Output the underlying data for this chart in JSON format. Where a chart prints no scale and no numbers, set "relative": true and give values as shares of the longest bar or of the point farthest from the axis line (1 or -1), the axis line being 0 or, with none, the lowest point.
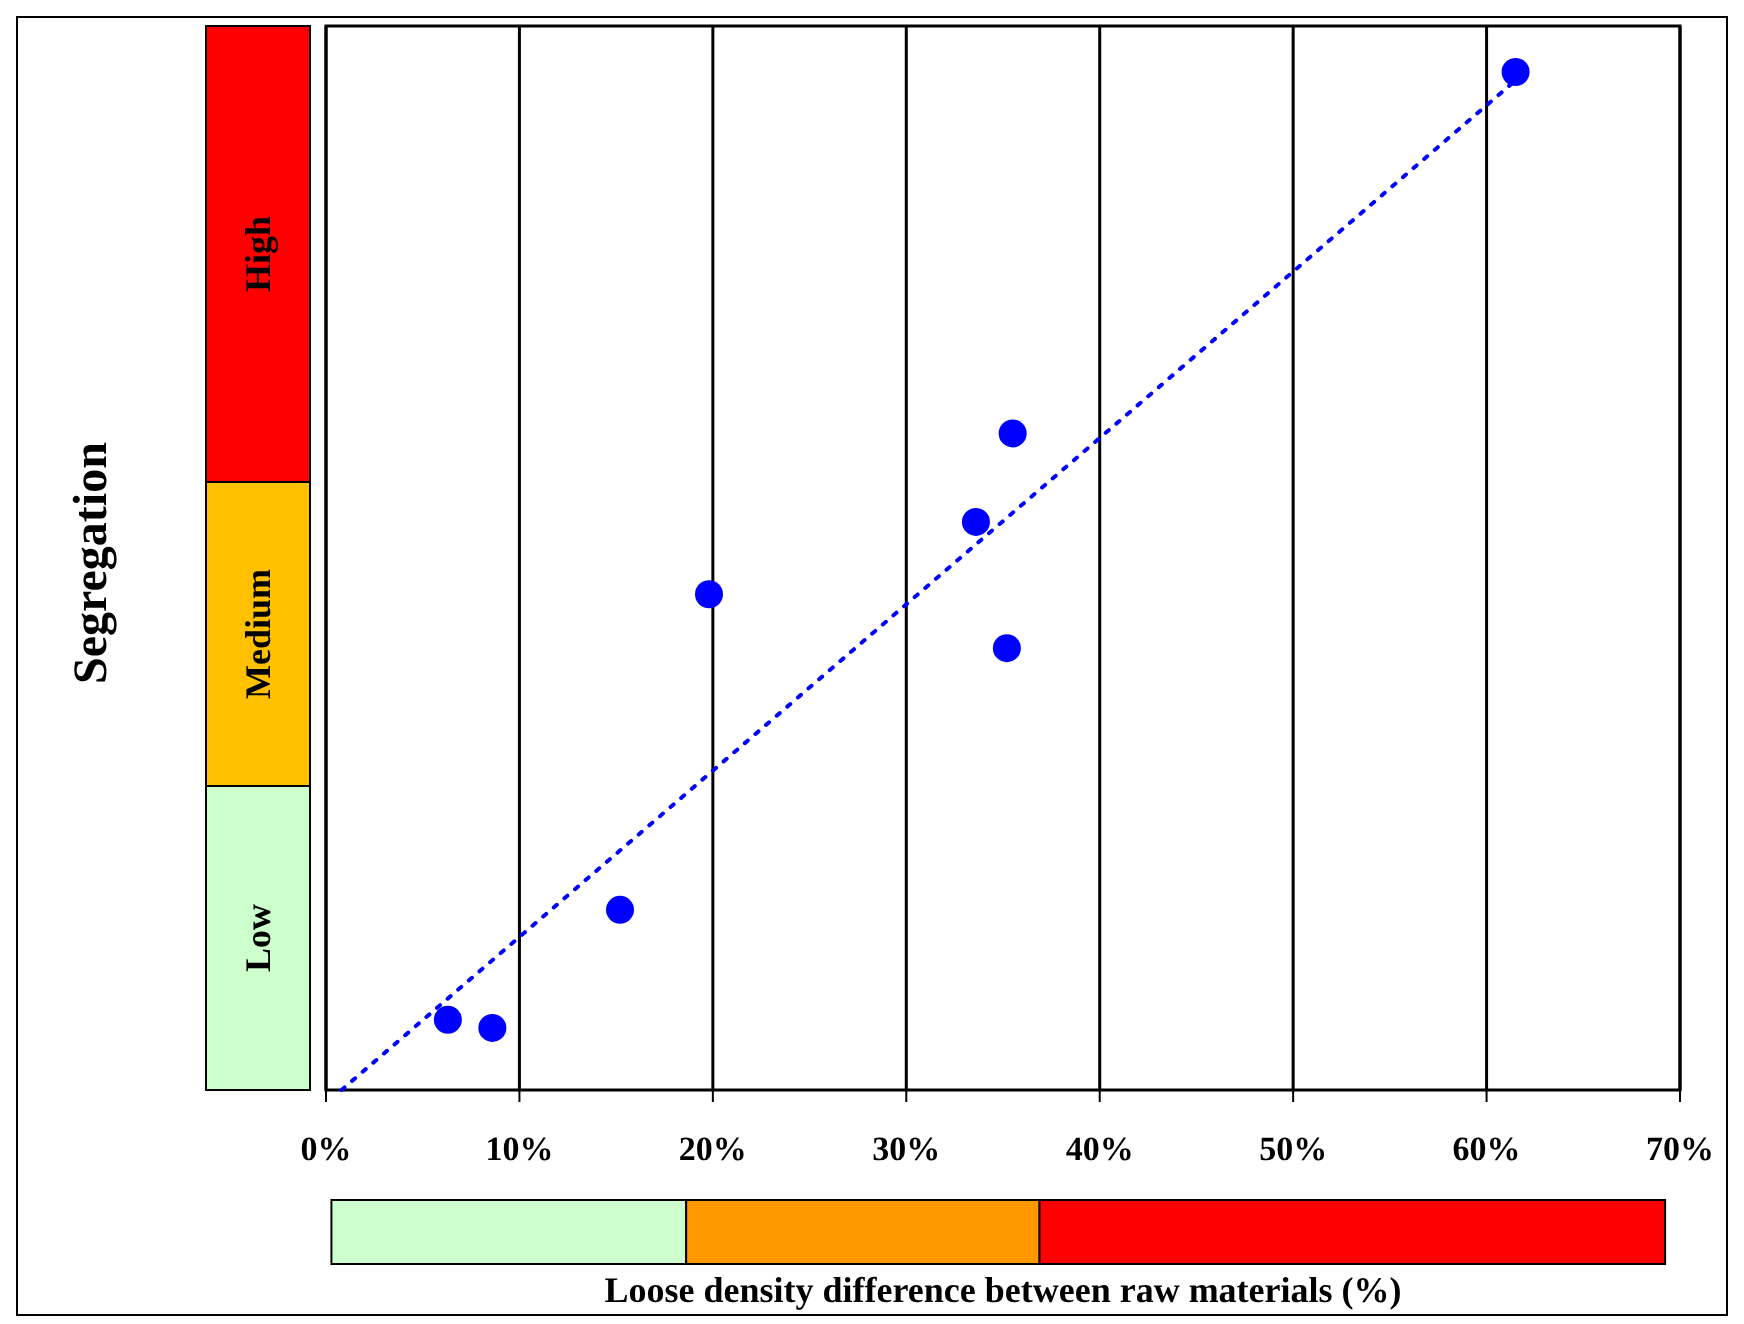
{
  "chart_data": {
    "type": "scatter",
    "xlabel": "Loose density difference between raw materials (%)",
    "ylabel": "Segregation",
    "relative": true,
    "xlim": [
      0,
      70
    ],
    "xticks": [
      {
        "value": 0,
        "label": "0%"
      },
      {
        "value": 10,
        "label": "10%"
      },
      {
        "value": 20,
        "label": "20%"
      },
      {
        "value": 30,
        "label": "30%"
      },
      {
        "value": 40,
        "label": "40%"
      },
      {
        "value": 50,
        "label": "50%"
      },
      {
        "value": 60,
        "label": "60%"
      },
      {
        "value": 70,
        "label": "70%"
      }
    ],
    "grid": "x",
    "series": [
      {
        "color": "#0000ff",
        "marker": "circle",
        "x": [
          6.3,
          8.6,
          15.2,
          19.8,
          33.6,
          35.2,
          35.5,
          61.5
        ],
        "values": [
          0.069,
          0.061,
          0.177,
          0.487,
          0.558,
          0.434,
          0.645,
          1
        ]
      },
      {
        "type": "line",
        "color": "#0000ff",
        "marker": "none",
        "line_style": "dotted",
        "x": [
          0.8,
          62
        ],
        "values": [
          0,
          1
        ]
      }
    ],
    "annotations": [
      "Low",
      "Medium",
      "High"
    ]
  }
}
